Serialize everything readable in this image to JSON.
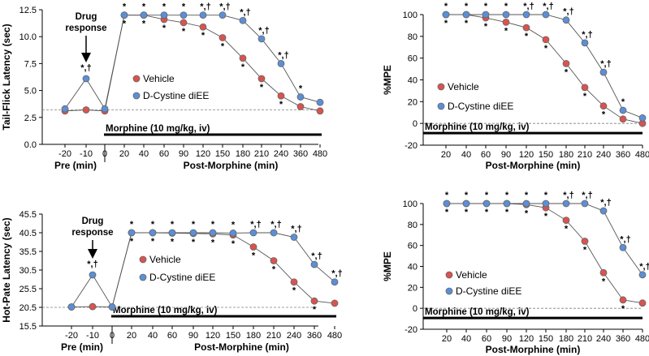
{
  "colors": {
    "vehicle": "#d9534f",
    "dcystine": "#5b8fd6",
    "marker_edge": "#666666",
    "axis": "#000000",
    "baseline": "#808080"
  },
  "chart_data": [
    {
      "id": "tail_flick_latency",
      "type": "line",
      "ylabel": "Tail-Flick Latency (sec)",
      "ylim": [
        0,
        12.5
      ],
      "yticks": [
        "0.0",
        "2.5",
        "5.0",
        "7.5",
        "10.0",
        "12.5"
      ],
      "ytick_values": [
        0,
        2.5,
        5.0,
        7.5,
        10.0,
        12.5
      ],
      "baseline_value": 3.2,
      "categories_pre": [
        "-20",
        "-10",
        "0"
      ],
      "categories_post": [
        "20",
        "40",
        "60",
        "90",
        "120",
        "150",
        "180",
        "210",
        "240",
        "360",
        "480"
      ],
      "pre_label": "Pre (min)",
      "post_label": "Post-Morphine (min)",
      "morphine_label": "Morphine (10 mg/kg, iv)",
      "drug_label_line1": "Drug",
      "drug_label_line2": "response",
      "drug_sig": "*,†",
      "series": [
        {
          "name": "Vehicle",
          "pre": [
            3.1,
            3.2,
            3.1
          ],
          "post": [
            12.0,
            12.0,
            11.6,
            11.3,
            10.9,
            9.9,
            8.0,
            6.1,
            4.5,
            3.5,
            3.1
          ]
        },
        {
          "name": "D-Cystine diEE",
          "pre": [
            3.3,
            6.1,
            3.3
          ],
          "post": [
            12.0,
            12.0,
            12.0,
            12.0,
            12.0,
            12.0,
            11.5,
            9.8,
            7.5,
            4.4,
            3.9
          ]
        }
      ],
      "sig_above": [
        "*",
        "*",
        "*",
        "*",
        "*,†",
        "*,†",
        "*,†",
        "*,†",
        "*,†",
        "*",
        ""
      ],
      "sig_below": [
        "*",
        "*",
        "*",
        "*",
        "*",
        "*",
        "*",
        "*",
        "*",
        "",
        ""
      ],
      "legend": [
        "Vehicle",
        "D-Cystine diEE"
      ]
    },
    {
      "id": "tail_flick_mpe",
      "type": "line",
      "ylabel": "%MPE",
      "ylim": [
        -20,
        100
      ],
      "yticks": [
        "-20",
        "0",
        "20",
        "40",
        "60",
        "80",
        "100"
      ],
      "ytick_values": [
        -20,
        0,
        20,
        40,
        60,
        80,
        100
      ],
      "categories": [
        "20",
        "40",
        "60",
        "90",
        "120",
        "150",
        "180",
        "210",
        "240",
        "360",
        "480"
      ],
      "xlabel": "Post-Morphine (min)",
      "morphine_label": "Morphine (10 mg/kg, iv)",
      "series": [
        {
          "name": "Vehicle",
          "values": [
            100,
            100,
            97,
            93,
            88,
            77,
            55,
            33,
            16,
            4,
            0
          ]
        },
        {
          "name": "D-Cystine diEE",
          "values": [
            100,
            100,
            100,
            100,
            100,
            100,
            95,
            74,
            47,
            12,
            5
          ]
        }
      ],
      "sig_above": [
        "*",
        "*",
        "*",
        "*",
        "*,†",
        "*,†",
        "*,†",
        "*,†",
        "*,†",
        "*",
        ""
      ],
      "sig_below": [
        "*",
        "*",
        "*",
        "*",
        "*",
        "*",
        "*",
        "*",
        "*",
        "",
        ""
      ],
      "legend": [
        "Vehicle",
        "D-Cystine diEE"
      ]
    },
    {
      "id": "hot_plate_latency",
      "type": "line",
      "ylabel": "Hot-Pate Latency (sec)",
      "ylim": [
        15.5,
        45.5
      ],
      "yticks": [
        "15.5",
        "20.5",
        "25.5",
        "30.5",
        "35.5",
        "40.5",
        "45.5"
      ],
      "ytick_values": [
        15.5,
        20.5,
        25.5,
        30.5,
        35.5,
        40.5,
        45.5
      ],
      "baseline_value": 20.5,
      "categories_pre": [
        "-20",
        "-10",
        "0"
      ],
      "categories_post": [
        "20",
        "40",
        "60",
        "90",
        "120",
        "150",
        "180",
        "210",
        "240",
        "360",
        "480"
      ],
      "pre_label": "Pre (min)",
      "post_label": "Post-Morphine (min)",
      "morphine_label": "Morphine (10 mg/kg, iv)",
      "drug_label_line1": "Drug",
      "drug_label_line2": "response",
      "drug_sig": "*,†",
      "series": [
        {
          "name": "Vehicle",
          "pre": [
            20.6,
            20.7,
            20.6
          ],
          "post": [
            40.5,
            40.5,
            40.4,
            40.3,
            40.2,
            39.9,
            36.7,
            33.0,
            27.3,
            22.2,
            21.6
          ]
        },
        {
          "name": "D-Cystine diEE",
          "pre": [
            20.6,
            29.2,
            20.6
          ],
          "post": [
            40.5,
            40.5,
            40.5,
            40.5,
            40.5,
            40.4,
            40.5,
            40.5,
            39.3,
            32.0,
            27.3
          ]
        }
      ],
      "sig_above": [
        "*",
        "*",
        "*",
        "*",
        "*",
        "*",
        "*,†",
        "*,†",
        "*,†",
        "*,†",
        "*,†"
      ],
      "sig_below": [
        "*",
        "*",
        "*",
        "*",
        "*",
        "*",
        "*",
        "*",
        "*",
        "*",
        ""
      ],
      "legend": [
        "Vehicle",
        "D-Cystine diEE"
      ]
    },
    {
      "id": "hot_plate_mpe",
      "type": "line",
      "ylabel": "%MPE",
      "ylim": [
        -20,
        100
      ],
      "yticks": [
        "-20",
        "0",
        "20",
        "40",
        "60",
        "80",
        "100"
      ],
      "ytick_values": [
        -20,
        0,
        20,
        40,
        60,
        80,
        100
      ],
      "categories": [
        "20",
        "40",
        "60",
        "90",
        "120",
        "150",
        "180",
        "210",
        "240",
        "360",
        "480"
      ],
      "xlabel": "Post-Morphine (min)",
      "morphine_label": "Morphine (10 mg/kg, iv)",
      "series": [
        {
          "name": "Vehicle",
          "values": [
            100,
            100,
            100,
            100,
            99,
            96,
            84,
            64,
            34,
            8,
            5
          ]
        },
        {
          "name": "D-Cystine diEE",
          "values": [
            100,
            100,
            100,
            100,
            100,
            100,
            100,
            100,
            93,
            58,
            32
          ]
        }
      ],
      "sig_above": [
        "*",
        "*",
        "*",
        "*",
        "*",
        "*",
        "*,†",
        "*,†",
        "*,†",
        "*,†",
        "*,†"
      ],
      "sig_below": [
        "*",
        "*",
        "*",
        "*",
        "*",
        "*",
        "*",
        "*",
        "*",
        "*",
        ""
      ],
      "legend": [
        "Vehicle",
        "D-Cystine diEE"
      ]
    }
  ]
}
